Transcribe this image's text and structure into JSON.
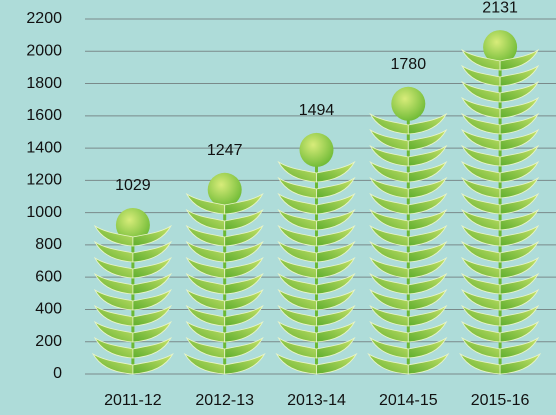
{
  "chart_data": {
    "type": "bar",
    "categories": [
      "2011-12",
      "2012-13",
      "2013-14",
      "2014-15",
      "2015-16"
    ],
    "values": [
      1029,
      1247,
      1494,
      1780,
      2131
    ],
    "color": "#7dc242",
    "ylim": [
      0,
      2200
    ],
    "yticks": [
      0,
      200,
      400,
      600,
      800,
      1000,
      1200,
      1400,
      1600,
      1800,
      2000,
      2200
    ],
    "grid": true
  }
}
